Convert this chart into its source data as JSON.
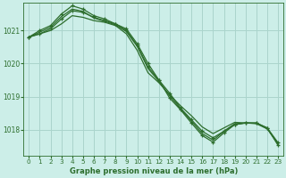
{
  "title": "Graphe pression niveau de la mer (hPa)",
  "bg_color": "#cceee8",
  "grid_color": "#aad4cc",
  "line_color": "#2d6e2d",
  "xlim": [
    -0.5,
    23.5
  ],
  "ylim": [
    1017.2,
    1021.85
  ],
  "yticks": [
    1018,
    1019,
    1020,
    1021
  ],
  "xticks": [
    0,
    1,
    2,
    3,
    4,
    5,
    6,
    7,
    8,
    9,
    10,
    11,
    12,
    13,
    14,
    15,
    16,
    17,
    18,
    19,
    20,
    21,
    22,
    23
  ],
  "series_with_markers": [
    [
      1020.8,
      1020.9,
      1021.05,
      1021.35,
      1021.6,
      1021.55,
      1021.4,
      1021.3,
      1021.2,
      1021.0,
      1020.55,
      1019.9,
      1019.5,
      1019.1,
      1018.65,
      1018.3,
      1017.95,
      1017.75,
      1017.95,
      1018.15,
      1018.2,
      1018.2,
      1018.05,
      1017.6
    ],
    [
      1020.8,
      1021.0,
      1021.15,
      1021.5,
      1021.75,
      1021.65,
      1021.45,
      1021.35,
      1021.2,
      1021.05,
      1020.6,
      1020.0,
      1019.5,
      1018.95,
      1018.6,
      1018.2,
      1017.82,
      1017.62,
      1017.9,
      1018.15,
      1018.2,
      1018.2,
      1018.05,
      1017.52
    ]
  ],
  "series_smooth": [
    [
      1020.8,
      1020.9,
      1021.0,
      1021.2,
      1021.45,
      1021.4,
      1021.3,
      1021.25,
      1021.15,
      1020.9,
      1020.4,
      1019.72,
      1019.42,
      1019.05,
      1018.72,
      1018.42,
      1018.08,
      1017.88,
      1018.05,
      1018.22,
      1018.2,
      1018.18,
      1018.02,
      1017.58
    ],
    [
      1020.8,
      1020.95,
      1021.1,
      1021.42,
      1021.65,
      1021.58,
      1021.38,
      1021.28,
      1021.17,
      1020.97,
      1020.52,
      1019.85,
      1019.46,
      1019.02,
      1018.62,
      1018.26,
      1017.88,
      1017.68,
      1017.95,
      1018.18,
      1018.2,
      1018.19,
      1018.03,
      1017.56
    ]
  ]
}
